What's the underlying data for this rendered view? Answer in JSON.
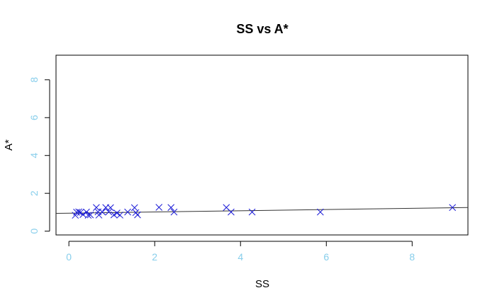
{
  "chart_data": {
    "type": "scatter",
    "title": "SS vs A*",
    "xlabel": "SS",
    "ylabel": "A*",
    "xlim": [
      -0.3,
      9.3
    ],
    "ylim": [
      -0.2,
      9.3
    ],
    "x_ticks": [
      0,
      2,
      4,
      6,
      8
    ],
    "y_ticks": [
      0,
      2,
      4,
      6,
      8
    ],
    "grid": false,
    "legend": "none",
    "colors": {
      "points": "#1a1ad6",
      "ticks": "#87ceeb",
      "fit_line": "#333333",
      "frame": "#000000"
    },
    "marker": "x",
    "series": [
      {
        "points": [
          {
            "x": 0.15,
            "y": 0.84
          },
          {
            "x": 0.18,
            "y": 1.0
          },
          {
            "x": 0.23,
            "y": 1.02
          },
          {
            "x": 0.27,
            "y": 0.99
          },
          {
            "x": 0.33,
            "y": 0.88
          },
          {
            "x": 0.41,
            "y": 1.01
          },
          {
            "x": 0.45,
            "y": 0.84
          },
          {
            "x": 0.5,
            "y": 0.86
          },
          {
            "x": 0.64,
            "y": 1.25
          },
          {
            "x": 0.68,
            "y": 1.02
          },
          {
            "x": 0.7,
            "y": 0.85
          },
          {
            "x": 0.78,
            "y": 1.01
          },
          {
            "x": 0.86,
            "y": 1.25
          },
          {
            "x": 0.93,
            "y": 1.02
          },
          {
            "x": 0.97,
            "y": 1.24
          },
          {
            "x": 1.05,
            "y": 0.86
          },
          {
            "x": 1.12,
            "y": 0.96
          },
          {
            "x": 1.19,
            "y": 0.85
          },
          {
            "x": 1.37,
            "y": 1.01
          },
          {
            "x": 1.53,
            "y": 1.24
          },
          {
            "x": 1.56,
            "y": 0.98
          },
          {
            "x": 1.6,
            "y": 0.86
          },
          {
            "x": 2.1,
            "y": 1.26
          },
          {
            "x": 2.38,
            "y": 1.25
          },
          {
            "x": 2.45,
            "y": 1.01
          },
          {
            "x": 3.67,
            "y": 1.25
          },
          {
            "x": 3.78,
            "y": 1.01
          },
          {
            "x": 4.27,
            "y": 1.01
          },
          {
            "x": 5.86,
            "y": 1.01
          },
          {
            "x": 8.94,
            "y": 1.25
          }
        ]
      }
    ],
    "fit_line": {
      "x": [
        -0.3,
        9.3
      ],
      "y": [
        0.94,
        1.25
      ]
    }
  }
}
